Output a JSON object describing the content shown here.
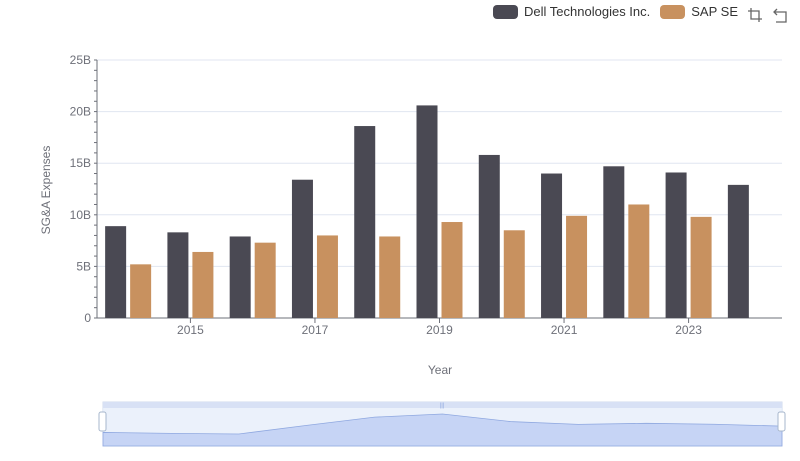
{
  "chart_data": {
    "type": "bar",
    "xlabel": "Year",
    "ylabel": "SG&A Expenses",
    "x": [
      2014,
      2015,
      2016,
      2017,
      2018,
      2019,
      2020,
      2021,
      2022,
      2023,
      2024
    ],
    "x_tick_labels": [
      "2015",
      "2017",
      "2019",
      "2021",
      "2023"
    ],
    "y_tick_labels": [
      "0",
      "5B",
      "10B",
      "15B",
      "20B",
      "25B"
    ],
    "ylim": [
      0,
      25000000000
    ],
    "series": [
      {
        "name": "Dell Technologies Inc.",
        "color": "#4a4953",
        "values": [
          8900000000,
          8300000000,
          7900000000,
          13400000000,
          18600000000,
          20600000000,
          15800000000,
          14000000000,
          14700000000,
          14100000000,
          12900000000
        ]
      },
      {
        "name": "SAP SE",
        "color": "#c8915f",
        "values": [
          5200000000,
          6400000000,
          7300000000,
          8000000000,
          7900000000,
          9300000000,
          8500000000,
          9900000000,
          11000000000,
          9800000000,
          null
        ]
      }
    ],
    "legend_position": "top-right",
    "grid": true,
    "datazoom": true
  }
}
